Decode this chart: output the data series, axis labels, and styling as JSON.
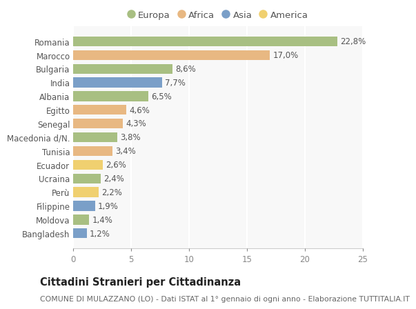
{
  "countries": [
    "Romania",
    "Marocco",
    "Bulgaria",
    "India",
    "Albania",
    "Egitto",
    "Senegal",
    "Macedonia d/N.",
    "Tunisia",
    "Ecuador",
    "Ucraina",
    "Perù",
    "Filippine",
    "Moldova",
    "Bangladesh"
  ],
  "values": [
    22.8,
    17.0,
    8.6,
    7.7,
    6.5,
    4.6,
    4.3,
    3.8,
    3.4,
    2.6,
    2.4,
    2.2,
    1.9,
    1.4,
    1.2
  ],
  "labels": [
    "22,8%",
    "17,0%",
    "8,6%",
    "7,7%",
    "6,5%",
    "4,6%",
    "4,3%",
    "3,8%",
    "3,4%",
    "2,6%",
    "2,4%",
    "2,2%",
    "1,9%",
    "1,4%",
    "1,2%"
  ],
  "continents": [
    "Europa",
    "Africa",
    "Europa",
    "Asia",
    "Europa",
    "Africa",
    "Africa",
    "Europa",
    "Africa",
    "America",
    "Europa",
    "America",
    "Asia",
    "Europa",
    "Asia"
  ],
  "colors": {
    "Europa": "#a8bf82",
    "Africa": "#e8b882",
    "Asia": "#7a9fc8",
    "America": "#f0d070"
  },
  "legend_order": [
    "Europa",
    "Africa",
    "Asia",
    "America"
  ],
  "title": "Cittadini Stranieri per Cittadinanza",
  "subtitle": "COMUNE DI MULAZZANO (LO) - Dati ISTAT al 1° gennaio di ogni anno - Elaborazione TUTTITALIA.IT",
  "xlim": [
    0,
    25
  ],
  "xticks": [
    0,
    5,
    10,
    15,
    20,
    25
  ],
  "bg_color": "#ffffff",
  "plot_bg_color": "#f8f8f8",
  "grid_color": "#ffffff",
  "bar_height": 0.72,
  "label_fontsize": 8.5,
  "tick_fontsize": 8.5,
  "legend_fontsize": 9.5,
  "title_fontsize": 10.5,
  "subtitle_fontsize": 7.8
}
